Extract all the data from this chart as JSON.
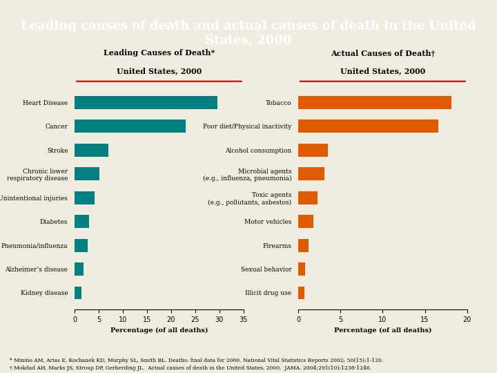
{
  "title": "Leading causes of death and actual causes of death in the United\nStates, 2000",
  "title_bg": "#1a237e",
  "title_color": "#ffffff",
  "bg_color": "#f0ede0",
  "left_title_line1": "Leading Causes of Death*",
  "left_title_line2": "United States, 2000",
  "right_title_line1": "Actual Causes of Death†",
  "right_title_line2": "United States, 2000",
  "left_categories": [
    "Heart Disease",
    "Cancer",
    "Stroke",
    "Chronic lower\nrespiratory disease",
    "Unintentional injuries",
    "Diabetes",
    "Pneumonia/influenza",
    "Alzheimer’s disease",
    "Kidney disease"
  ],
  "left_values": [
    29.6,
    23.0,
    7.0,
    5.2,
    4.1,
    3.0,
    2.7,
    1.8,
    1.5
  ],
  "left_color": "#008080",
  "left_xlim": [
    0,
    35
  ],
  "left_xticks": [
    0,
    5,
    10,
    15,
    20,
    25,
    30,
    35
  ],
  "left_xlabel": "Percentage (of all deaths)",
  "right_categories": [
    "Tobacco",
    "Poor diet/Physical inactivity",
    "Alcohol consumption",
    "Microbial agents\n(e.g., influenza, pneumonia)",
    "Toxic agents\n(e.g., pollutants, asbestos)",
    "Motor vehicles",
    "Firearms",
    "Sexual behavior",
    "Illicit drug use"
  ],
  "right_values": [
    18.1,
    16.6,
    3.5,
    3.1,
    2.3,
    1.8,
    1.2,
    0.8,
    0.7
  ],
  "right_color": "#e05a00",
  "right_xlim": [
    0,
    20
  ],
  "right_xticks": [
    0,
    5,
    10,
    15,
    20
  ],
  "right_xlabel": "Percentage (of all deaths)",
  "footnote1": "* Miniño AM, Arias E, Kochanek KD, Murphy SL, Smith BL. Deaths: final data for 2000. National Vital Statistics Reports 2002; 50(15):1-120.",
  "footnote2": "† Mokdad AH, Marks JS, Stroup DP, Gerberding JL.  Actual causes of death in the United States, 2000.  JAMA. 2004;291(10):1238-1246.",
  "underline_color": "#cc0000"
}
